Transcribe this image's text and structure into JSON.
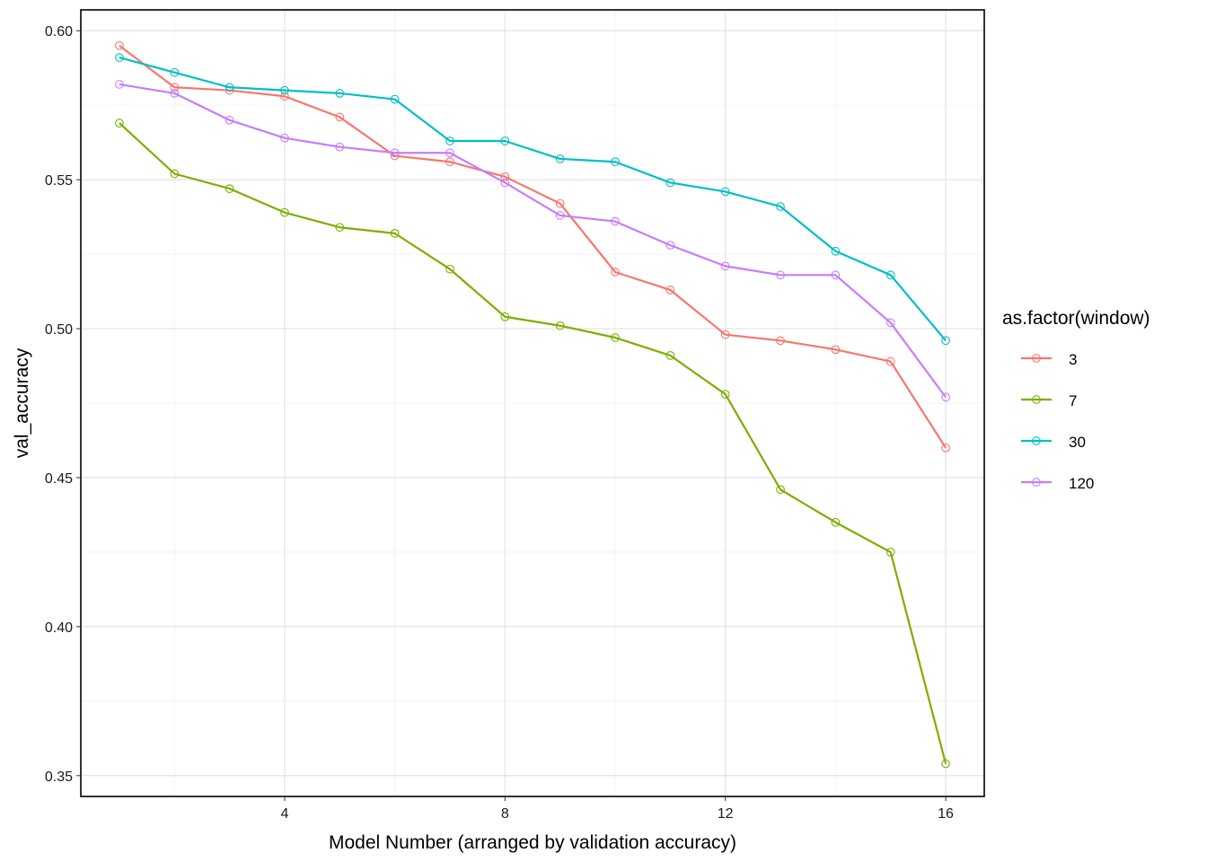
{
  "chart_data": {
    "type": "line",
    "xlabel": "Model Number (arranged by  validation accuracy)",
    "ylabel": "val_accuracy",
    "xlim": [
      0.3,
      16.7
    ],
    "ylim": [
      0.343,
      0.607
    ],
    "x_ticks": [
      4,
      8,
      12,
      16
    ],
    "y_ticks": [
      0.35,
      0.4,
      0.45,
      0.5,
      0.55,
      0.6
    ],
    "grid": true,
    "legend_position": "right",
    "legend_title": "as.factor(window)",
    "x": [
      1,
      2,
      3,
      4,
      5,
      6,
      7,
      8,
      9,
      10,
      11,
      12,
      13,
      14,
      15,
      16
    ],
    "series": [
      {
        "name": "3",
        "color": "#F8766D",
        "values": [
          0.595,
          0.581,
          0.58,
          0.578,
          0.571,
          0.558,
          0.556,
          0.551,
          0.542,
          0.519,
          0.513,
          0.498,
          0.496,
          0.493,
          0.489,
          0.46
        ]
      },
      {
        "name": "7",
        "color": "#7CAE00",
        "values": [
          0.569,
          0.552,
          0.547,
          0.539,
          0.534,
          0.532,
          0.52,
          0.504,
          0.501,
          0.497,
          0.491,
          0.478,
          0.446,
          0.435,
          0.425,
          0.354
        ]
      },
      {
        "name": "30",
        "color": "#00BFC4",
        "values": [
          0.591,
          0.586,
          0.581,
          0.58,
          0.579,
          0.577,
          0.563,
          0.563,
          0.557,
          0.556,
          0.549,
          0.546,
          0.541,
          0.526,
          0.518,
          0.496
        ]
      },
      {
        "name": "120",
        "color": "#C77CFF",
        "values": [
          0.582,
          0.579,
          0.57,
          0.564,
          0.561,
          0.559,
          0.559,
          0.549,
          0.538,
          0.536,
          0.528,
          0.521,
          0.518,
          0.518,
          0.502,
          0.477
        ]
      }
    ]
  }
}
